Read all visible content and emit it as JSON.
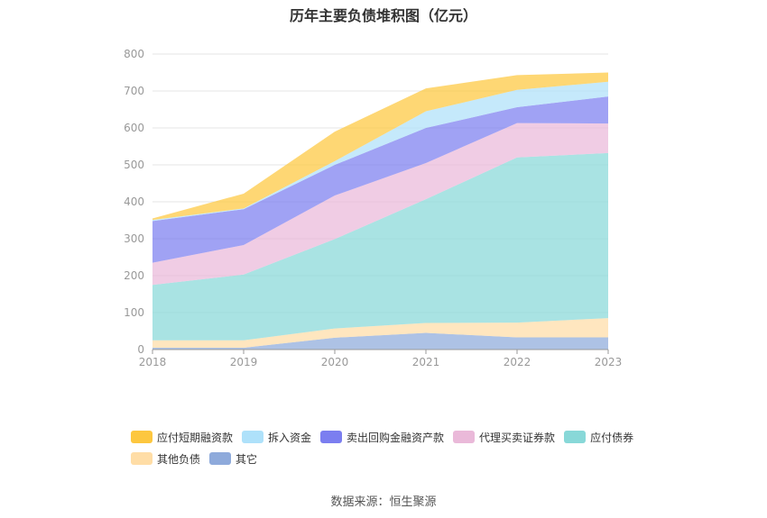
{
  "title": "历年主要负债堆积图（亿元）",
  "source": "数据来源：恒生聚源",
  "chart_data": {
    "type": "area",
    "stacked": true,
    "title": "历年主要负债堆积图（亿元）",
    "categories": [
      "2018",
      "2019",
      "2020",
      "2021",
      "2022",
      "2023"
    ],
    "ylim": [
      0,
      800
    ],
    "yticks": [
      0,
      100,
      200,
      300,
      400,
      500,
      600,
      700,
      800
    ],
    "grid": true,
    "legend_position": "bottom",
    "series": [
      {
        "name": "其它",
        "color": "#8eaadb",
        "values": [
          5,
          5,
          32,
          45,
          33,
          33
        ]
      },
      {
        "name": "其他负债",
        "color": "#ffdda6",
        "values": [
          20,
          20,
          25,
          27,
          40,
          52
        ]
      },
      {
        "name": "应付债券",
        "color": "#88d8d8",
        "values": [
          150,
          178,
          242,
          335,
          447,
          447
        ]
      },
      {
        "name": "代理买卖证券款",
        "color": "#eab9d9",
        "values": [
          60,
          80,
          118,
          98,
          93,
          80
        ]
      },
      {
        "name": "卖出回购金融资产款",
        "color": "#7b7ef0",
        "values": [
          113,
          97,
          83,
          95,
          43,
          73
        ]
      },
      {
        "name": "拆入资金",
        "color": "#aee1fa",
        "values": [
          3,
          2,
          10,
          45,
          47,
          40
        ]
      },
      {
        "name": "应付短期融资款",
        "color": "#fdc73f",
        "values": [
          4,
          40,
          80,
          62,
          40,
          25
        ]
      }
    ]
  },
  "legend": {
    "row1": [
      "应付短期融资款",
      "拆入资金",
      "卖出回购金融资产款",
      "代理买卖证券款",
      "应付债券"
    ],
    "row2": [
      "其他负债",
      "其它"
    ],
    "colors": {
      "应付短期融资款": "#fdc73f",
      "拆入资金": "#aee1fa",
      "卖出回购金融资产款": "#7b7ef0",
      "代理买卖证券款": "#eab9d9",
      "应付债券": "#88d8d8",
      "其他负债": "#ffdda6",
      "其它": "#8eaadb"
    }
  }
}
